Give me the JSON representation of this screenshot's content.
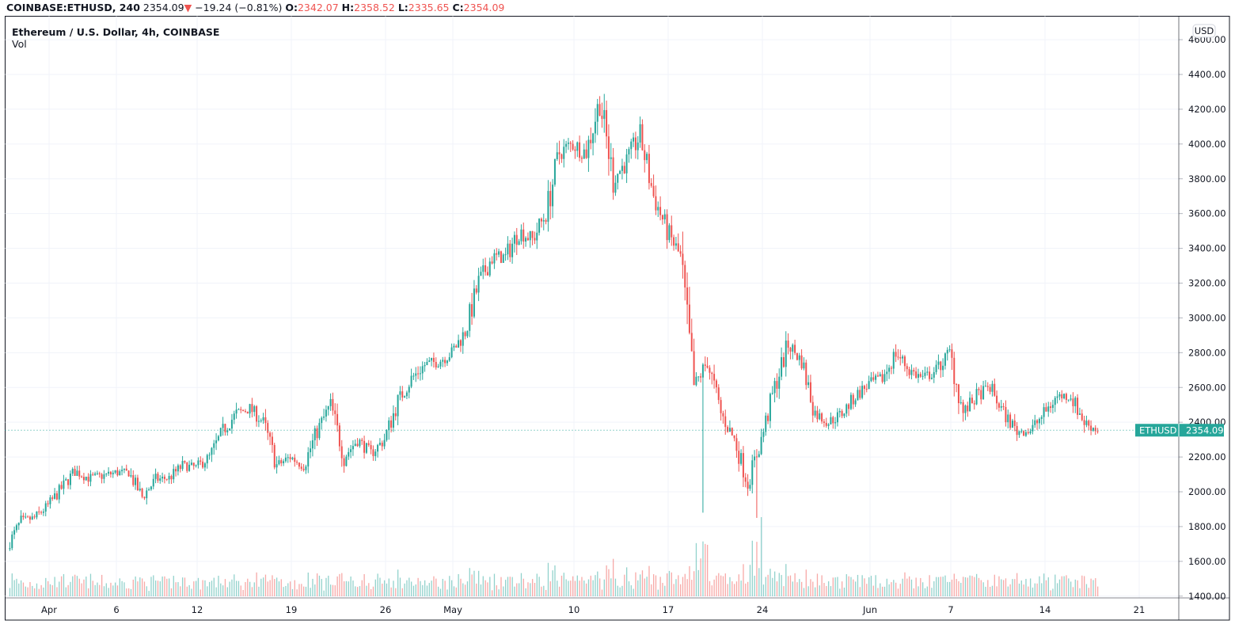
{
  "header": {
    "symbol": "COINBASE:ETHUSD, 240",
    "last": "2354.09",
    "change": "−19.24 (−0.81%)",
    "o_label": "O:",
    "o": "2342.07",
    "h_label": "H:",
    "h": "2358.52",
    "l_label": "L:",
    "l": "2335.65",
    "c_label": "C:",
    "c": "2354.09"
  },
  "legend": {
    "title": "Ethereum / U.S. Dollar, 4h, COINBASE",
    "volume": "Vol"
  },
  "currency_button": "USD",
  "colors": {
    "up": "#26a69a",
    "down": "#ef5350",
    "grid": "#f0f3fa"
  },
  "chart_data": {
    "type": "candlestick",
    "title": "Ethereum / U.S. Dollar, 4h, COINBASE",
    "ylim": [
      1400,
      4600
    ],
    "y_ticks": [
      "1400.00",
      "1600.00",
      "1800.00",
      "2000.00",
      "2200.00",
      "2400.00",
      "2600.00",
      "2800.00",
      "3000.00",
      "3200.00",
      "3400.00",
      "3600.00",
      "3800.00",
      "4000.00",
      "4200.00",
      "4400.00",
      "4600.00"
    ],
    "x_ticks": [
      {
        "label": "Apr",
        "day": 3
      },
      {
        "label": "6",
        "day": 8
      },
      {
        "label": "12",
        "day": 14
      },
      {
        "label": "19",
        "day": 21
      },
      {
        "label": "26",
        "day": 28
      },
      {
        "label": "May",
        "day": 33
      },
      {
        "label": "10",
        "day": 42
      },
      {
        "label": "17",
        "day": 49
      },
      {
        "label": "24",
        "day": 56
      },
      {
        "label": "Jun",
        "day": 64
      },
      {
        "label": "7",
        "day": 70
      },
      {
        "label": "14",
        "day": 77
      },
      {
        "label": "21",
        "day": 84
      }
    ],
    "daily_closes_approx": [
      1690,
      1830,
      1850,
      1920,
      2020,
      2120,
      2080,
      2090,
      2110,
      2110,
      1970,
      2070,
      2080,
      2150,
      2140,
      2200,
      2350,
      2450,
      2480,
      2400,
      2150,
      2200,
      2150,
      2350,
      2500,
      2200,
      2300,
      2220,
      2300,
      2520,
      2650,
      2730,
      2750,
      2800,
      2920,
      3200,
      3350,
      3350,
      3500,
      3450,
      3600,
      3950,
      4000,
      3950,
      4250,
      3800,
      3900,
      4050,
      3700,
      3500,
      3350,
      2600,
      2750,
      2450,
      2300,
      2050,
      2300,
      2600,
      2850,
      2750,
      2450,
      2400,
      2450,
      2550,
      2620,
      2650,
      2800,
      2700,
      2650,
      2700,
      2800,
      2450,
      2550,
      2600,
      2450,
      2350,
      2350,
      2450,
      2550,
      2550,
      2400,
      2354.09
    ],
    "notable_lows": [
      {
        "day": 51,
        "low": 1880
      },
      {
        "day": 55,
        "low": 1850
      }
    ],
    "last_price": {
      "label": "ETHUSD",
      "value": "2354.09"
    }
  }
}
